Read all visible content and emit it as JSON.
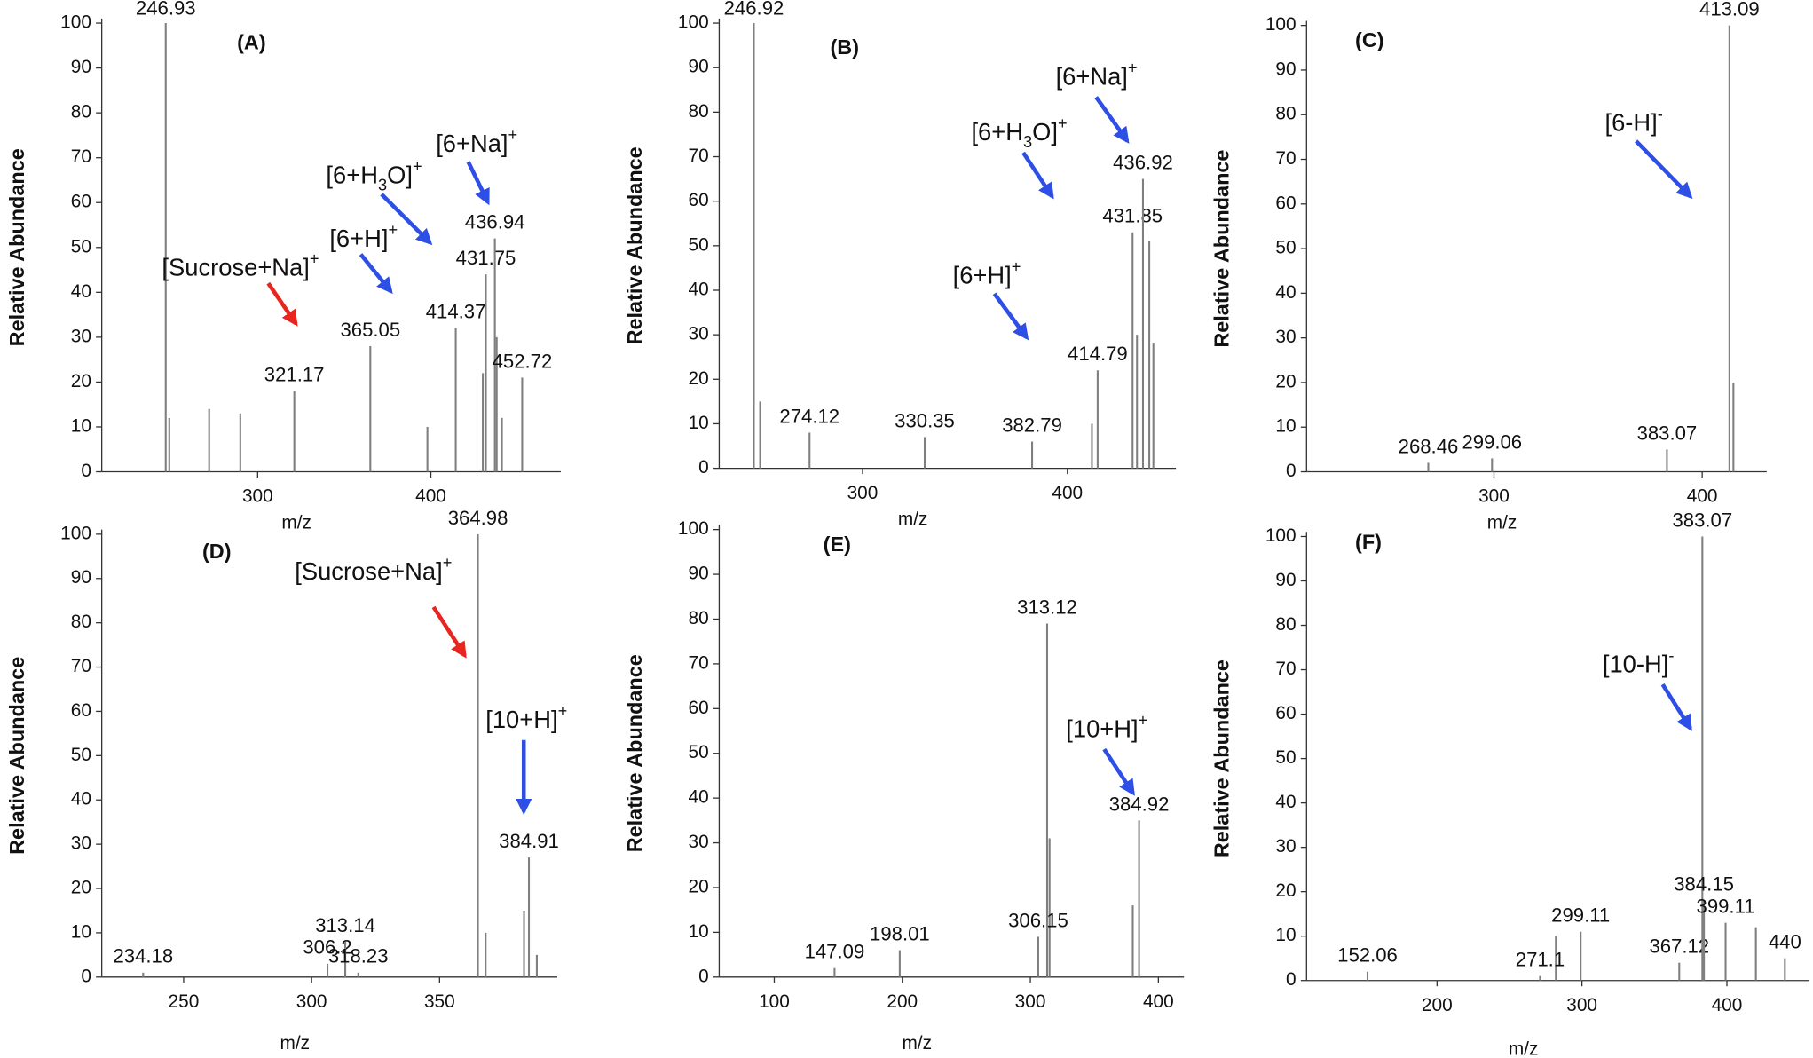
{
  "chart_data": [
    {
      "type": "bar",
      "panel": "(A)",
      "xlabel": "m/z",
      "ylabel": "Relative Abundance",
      "color": "#7f7f7f",
      "x": [
        246.93,
        321.17,
        365.05,
        414.37,
        431.75,
        436.94,
        452.72
      ],
      "values": [
        100,
        18,
        28,
        32,
        44,
        52,
        21
      ],
      "minor_x": [
        249,
        272,
        290,
        398,
        430,
        438,
        441
      ],
      "minor_values": [
        12,
        14,
        13,
        10,
        22,
        30,
        12
      ],
      "xlim": [
        210,
        475
      ],
      "xticks": [
        300,
        400
      ],
      "ylim": [
        0,
        100
      ],
      "yticks": [
        0,
        10,
        20,
        30,
        40,
        50,
        60,
        70,
        80,
        90,
        100
      ],
      "annotations": [
        {
          "color": "#e8251f",
          "segments": [
            {
              "text": "[Sucrose+Na]"
            },
            {
              "text": "+",
              "script": "sup"
            }
          ]
        },
        {
          "color": "#2d4fe6",
          "segments": [
            {
              "text": "[6+H]"
            },
            {
              "text": "+",
              "script": "sup"
            }
          ]
        },
        {
          "color": "#2d4fe6",
          "segments": [
            {
              "text": "[6+H"
            },
            {
              "text": "3",
              "script": "sub"
            },
            {
              "text": "O]"
            },
            {
              "text": "+",
              "script": "sup"
            }
          ]
        },
        {
          "color": "#2d4fe6",
          "segments": [
            {
              "text": "[6+Na]"
            },
            {
              "text": "+",
              "script": "sup"
            }
          ]
        }
      ]
    },
    {
      "type": "bar",
      "panel": "(B)",
      "xlabel": "m/z",
      "ylabel": "Relative Abundance",
      "color": "#7f7f7f",
      "x": [
        246.92,
        274.12,
        330.35,
        382.79,
        414.79,
        431.85,
        436.92
      ],
      "values": [
        100,
        8,
        7,
        6,
        22,
        53,
        65
      ],
      "minor_x": [
        250,
        412,
        434,
        440,
        442
      ],
      "minor_values": [
        15,
        10,
        30,
        51,
        28
      ],
      "xlim": [
        230,
        453
      ],
      "xticks": [
        300,
        400
      ],
      "ylim": [
        0,
        100
      ],
      "yticks": [
        0,
        10,
        20,
        30,
        40,
        50,
        60,
        70,
        80,
        90,
        100
      ],
      "annotations": [
        {
          "color": "#2d4fe6",
          "segments": [
            {
              "text": "[6+Na]"
            },
            {
              "text": "+",
              "script": "sup"
            }
          ]
        },
        {
          "color": "#2d4fe6",
          "segments": [
            {
              "text": "[6+H"
            },
            {
              "text": "3",
              "script": "sub"
            },
            {
              "text": "O]"
            },
            {
              "text": "+",
              "script": "sup"
            }
          ]
        },
        {
          "color": "#2d4fe6",
          "segments": [
            {
              "text": "[6+H]"
            },
            {
              "text": "+",
              "script": "sup"
            }
          ]
        }
      ]
    },
    {
      "type": "bar",
      "panel": "(C)",
      "xlabel": "m/z",
      "ylabel": "Relative Abundance",
      "color": "#7f7f7f",
      "x": [
        268.46,
        299.06,
        383.07,
        413.09
      ],
      "values": [
        2,
        3,
        5,
        100
      ],
      "minor_x": [
        415
      ],
      "minor_values": [
        20
      ],
      "xlim": [
        210,
        431
      ],
      "xticks": [
        300,
        400
      ],
      "ylim": [
        0,
        100
      ],
      "yticks": [
        0,
        10,
        20,
        30,
        40,
        50,
        60,
        70,
        80,
        90,
        100
      ],
      "annotations": [
        {
          "color": "#2d4fe6",
          "segments": [
            {
              "text": "[6-H]"
            },
            {
              "text": "-",
              "script": "sup"
            }
          ]
        }
      ]
    },
    {
      "type": "bar",
      "panel": "(D)",
      "xlabel": "m/z",
      "ylabel": "Relative Abundance",
      "color": "#7f7f7f",
      "x": [
        234.18,
        306.2,
        313.14,
        318.23,
        364.98,
        384.91
      ],
      "values": [
        1,
        3,
        8,
        1,
        100,
        27
      ],
      "minor_x": [
        368,
        383,
        388
      ],
      "minor_values": [
        10,
        15,
        5
      ],
      "xlim": [
        218,
        396
      ],
      "xticks": [
        250,
        300,
        350
      ],
      "ylim": [
        0,
        100
      ],
      "yticks": [
        0,
        10,
        20,
        30,
        40,
        50,
        60,
        70,
        80,
        90,
        100
      ],
      "annotations": [
        {
          "color": "#e8251f",
          "segments": [
            {
              "text": "[Sucrose+Na]"
            },
            {
              "text": "+",
              "script": "sup"
            }
          ]
        },
        {
          "color": "#2d4fe6",
          "segments": [
            {
              "text": "[10+H]"
            },
            {
              "text": "+",
              "script": "sup"
            }
          ]
        }
      ]
    },
    {
      "type": "bar",
      "panel": "(E)",
      "xlabel": "m/z",
      "ylabel": "Relative Abundance",
      "color": "#7f7f7f",
      "x": [
        147.09,
        198.01,
        306.15,
        313.12,
        384.92
      ],
      "values": [
        2,
        6,
        9,
        79,
        35
      ],
      "minor_x": [
        315,
        380
      ],
      "minor_values": [
        31,
        16
      ],
      "xlim": [
        57,
        420
      ],
      "xticks": [
        100,
        200,
        300,
        400
      ],
      "ylim": [
        0,
        100
      ],
      "yticks": [
        0,
        10,
        20,
        30,
        40,
        50,
        60,
        70,
        80,
        90,
        100
      ],
      "annotations": [
        {
          "color": "#2d4fe6",
          "segments": [
            {
              "text": "[10+H]"
            },
            {
              "text": "+",
              "script": "sup"
            }
          ]
        }
      ]
    },
    {
      "type": "bar",
      "panel": "(F)",
      "xlabel": "m/z",
      "ylabel": "Relative Abundance",
      "color": "#7f7f7f",
      "x": [
        152.06,
        271.1,
        299.11,
        367.12,
        383.07,
        384.15,
        399.11,
        440
      ],
      "values": [
        2,
        1,
        11,
        4,
        100,
        18,
        13,
        5
      ],
      "minor_x": [
        282,
        420
      ],
      "minor_values": [
        10,
        12
      ],
      "xlim": [
        110,
        457
      ],
      "xticks": [
        200,
        300,
        400
      ],
      "ylim": [
        0,
        100
      ],
      "yticks": [
        0,
        10,
        20,
        30,
        40,
        50,
        60,
        70,
        80,
        90,
        100
      ],
      "annotations": [
        {
          "color": "#2d4fe6",
          "segments": [
            {
              "text": "[10-H]"
            },
            {
              "text": "-",
              "script": "sup"
            }
          ]
        }
      ]
    }
  ]
}
